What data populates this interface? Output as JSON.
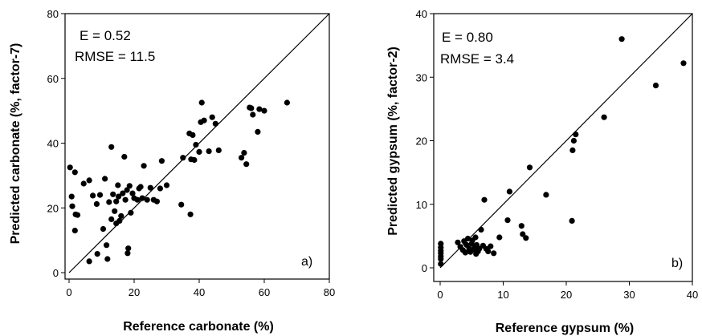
{
  "chart_data": [
    {
      "type": "scatter",
      "panel_label": "a)",
      "xlabel": "Reference carbonate (%)",
      "ylabel": "Predicted carbonate (%, factor-7)",
      "xlim": [
        0,
        80
      ],
      "ylim": [
        0,
        80
      ],
      "x_ticks": [
        0,
        20,
        40,
        60,
        80
      ],
      "y_ticks": [
        0,
        20,
        40,
        60,
        80
      ],
      "stats": [
        "E = 0.52",
        "RMSE = 11.5"
      ],
      "one_to_one_line": true,
      "points": [
        [
          0.3,
          32.5
        ],
        [
          1.8,
          31.0
        ],
        [
          0.8,
          23.5
        ],
        [
          1.0,
          20.5
        ],
        [
          2.0,
          18.0
        ],
        [
          2.6,
          17.8
        ],
        [
          1.8,
          13.0
        ],
        [
          4.5,
          27.5
        ],
        [
          6.2,
          28.5
        ],
        [
          6.2,
          3.5
        ],
        [
          7.3,
          23.8
        ],
        [
          8.5,
          21.2
        ],
        [
          8.7,
          5.8
        ],
        [
          9.5,
          24.0
        ],
        [
          10.5,
          13.5
        ],
        [
          11.0,
          29.0
        ],
        [
          11.5,
          8.5
        ],
        [
          11.8,
          4.2
        ],
        [
          12.3,
          21.8
        ],
        [
          13.0,
          38.8
        ],
        [
          13.0,
          16.5
        ],
        [
          13.5,
          24.2
        ],
        [
          14.0,
          19.0
        ],
        [
          14.5,
          22.0
        ],
        [
          14.5,
          15.2
        ],
        [
          15.0,
          27.0
        ],
        [
          15.2,
          23.5
        ],
        [
          15.5,
          16.0
        ],
        [
          16.0,
          17.5
        ],
        [
          16.5,
          24.5
        ],
        [
          17.0,
          35.8
        ],
        [
          17.3,
          22.5
        ],
        [
          17.8,
          25.5
        ],
        [
          18.2,
          7.5
        ],
        [
          18.0,
          6.0
        ],
        [
          18.6,
          26.8
        ],
        [
          19.0,
          18.5
        ],
        [
          19.5,
          24.5
        ],
        [
          20.0,
          23.0
        ],
        [
          21.0,
          22.5
        ],
        [
          21.5,
          26.0
        ],
        [
          22.0,
          26.5
        ],
        [
          22.5,
          23.0
        ],
        [
          23.0,
          33.0
        ],
        [
          24.0,
          22.5
        ],
        [
          25.0,
          26.2
        ],
        [
          26.0,
          22.5
        ],
        [
          27.0,
          22.0
        ],
        [
          28.0,
          26.0
        ],
        [
          28.5,
          34.5
        ],
        [
          30.0,
          27.0
        ],
        [
          34.5,
          21.0
        ],
        [
          35.0,
          35.5
        ],
        [
          37.0,
          43.0
        ],
        [
          37.3,
          18.0
        ],
        [
          37.5,
          35.0
        ],
        [
          38.0,
          42.5
        ],
        [
          38.5,
          34.8
        ],
        [
          39.0,
          39.5
        ],
        [
          40.0,
          37.3
        ],
        [
          40.5,
          46.5
        ],
        [
          40.8,
          52.5
        ],
        [
          41.5,
          47.0
        ],
        [
          43.0,
          37.5
        ],
        [
          44.0,
          48.0
        ],
        [
          45.0,
          46.0
        ],
        [
          46.0,
          37.8
        ],
        [
          53.0,
          35.5
        ],
        [
          53.8,
          37.0
        ],
        [
          54.5,
          33.5
        ],
        [
          55.5,
          51.0
        ],
        [
          56.0,
          50.8
        ],
        [
          56.5,
          48.8
        ],
        [
          58.0,
          43.5
        ],
        [
          58.5,
          50.5
        ],
        [
          60.0,
          50.0
        ],
        [
          67.0,
          52.5
        ]
      ]
    },
    {
      "type": "scatter",
      "panel_label": "b)",
      "xlabel": "Reference gypsum (%)",
      "ylabel": "Predicted gypsum (%, factor-2)",
      "xlim": [
        0,
        40
      ],
      "ylim": [
        0,
        40
      ],
      "x_ticks": [
        0,
        10,
        20,
        30,
        40
      ],
      "y_ticks": [
        0,
        10,
        20,
        30,
        40
      ],
      "stats": [
        "E = 0.80",
        "RMSE = 3.4"
      ],
      "one_to_one_line": true,
      "points": [
        [
          0.1,
          3.8
        ],
        [
          0.1,
          3.2
        ],
        [
          0.1,
          2.7
        ],
        [
          0.1,
          2.3
        ],
        [
          0.1,
          1.8
        ],
        [
          0.1,
          1.4
        ],
        [
          0.1,
          0.6
        ],
        [
          2.8,
          4.0
        ],
        [
          3.2,
          3.3
        ],
        [
          3.6,
          2.8
        ],
        [
          3.8,
          4.2
        ],
        [
          4.0,
          2.4
        ],
        [
          4.2,
          3.6
        ],
        [
          4.4,
          4.6
        ],
        [
          4.6,
          3.0
        ],
        [
          4.8,
          2.5
        ],
        [
          5.0,
          3.8
        ],
        [
          5.1,
          4.3
        ],
        [
          5.3,
          2.9
        ],
        [
          5.5,
          3.3
        ],
        [
          5.6,
          4.8
        ],
        [
          5.7,
          2.2
        ],
        [
          5.8,
          3.6
        ],
        [
          6.0,
          2.6
        ],
        [
          6.2,
          3.0
        ],
        [
          6.5,
          6.0
        ],
        [
          6.8,
          3.5
        ],
        [
          7.0,
          10.7
        ],
        [
          7.3,
          3.0
        ],
        [
          7.6,
          2.6
        ],
        [
          8.0,
          3.4
        ],
        [
          8.5,
          2.3
        ],
        [
          9.4,
          4.8
        ],
        [
          10.7,
          7.5
        ],
        [
          11.0,
          12.0
        ],
        [
          12.9,
          6.6
        ],
        [
          13.1,
          5.3
        ],
        [
          13.6,
          4.7
        ],
        [
          14.2,
          15.8
        ],
        [
          16.8,
          11.5
        ],
        [
          20.9,
          7.4
        ],
        [
          21.0,
          18.5
        ],
        [
          21.2,
          20.0
        ],
        [
          21.5,
          21.0
        ],
        [
          26.0,
          23.7
        ],
        [
          28.8,
          36.0
        ],
        [
          34.2,
          28.7
        ],
        [
          38.6,
          32.2
        ]
      ]
    }
  ]
}
